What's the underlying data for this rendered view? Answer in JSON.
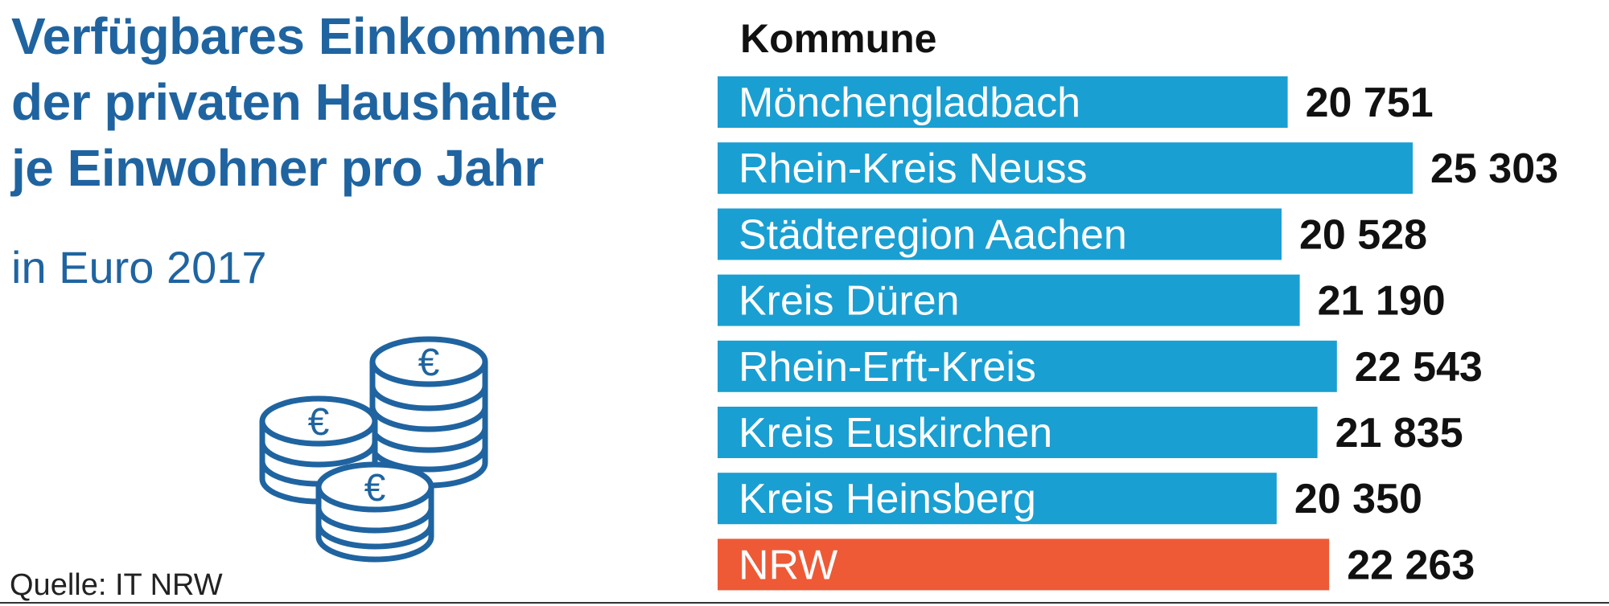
{
  "title_lines": [
    "Verfügbares Einkommen",
    "der privaten Haushalte",
    "je Einwohner pro Jahr"
  ],
  "subtitle": "in Euro 2017",
  "source": "Quelle: IT NRW",
  "colors": {
    "title": "#1f64a0",
    "bar": "#1a9fd2",
    "highlight_bar": "#ee5a36",
    "icon": "#1f64a0"
  },
  "icon": {
    "name": "euro-coins-icon",
    "glyph": "€"
  },
  "chart_data": {
    "type": "bar",
    "orientation": "horizontal",
    "title": "Verfügbares Einkommen der privaten Haushalte je Einwohner pro Jahr",
    "subtitle": "in Euro 2017",
    "category_header": "Kommune",
    "categories": [
      "Mönchengladbach",
      "Rhein-Kreis Neuss",
      "Städteregion Aachen",
      "Kreis Düren",
      "Rhein-Erft-Kreis",
      "Kreis Euskirchen",
      "Kreis Heinsberg",
      "NRW"
    ],
    "values": [
      20751,
      25303,
      20528,
      21190,
      22543,
      21835,
      20350,
      22263
    ],
    "value_labels": [
      "20 751",
      "25 303",
      "20 528",
      "21 190",
      "22 543",
      "21 835",
      "20 350",
      "22 263"
    ],
    "highlight": [
      "NRW"
    ],
    "xlim": [
      0,
      25303
    ],
    "grid": false,
    "legend": "none",
    "source": "Quelle: IT NRW"
  }
}
